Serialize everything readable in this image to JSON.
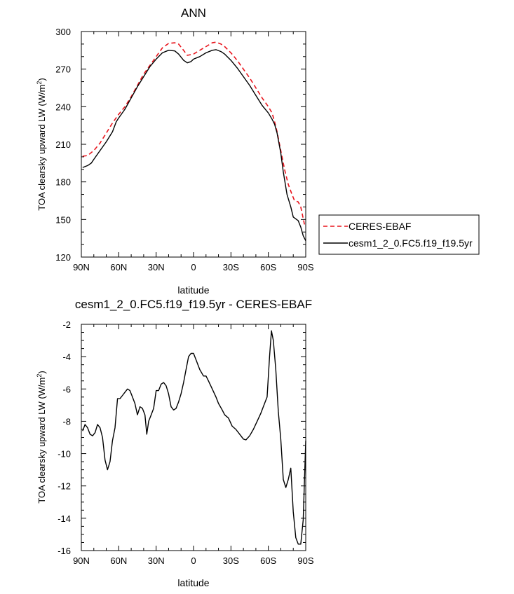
{
  "chart_data": [
    {
      "type": "line",
      "title": "ANN",
      "xlabel": "latitude",
      "ylabel": "TOA clearsky upward LW (W/m",
      "ylabel_sup": "2",
      "ylabel_close": ")",
      "xlim": [
        90,
        -90
      ],
      "ylim": [
        120,
        300
      ],
      "x_ticks": [
        90,
        60,
        30,
        0,
        -30,
        -60,
        -90
      ],
      "x_tick_labels": [
        "90N",
        "60N",
        "30N",
        "0",
        "30S",
        "60S",
        "90S"
      ],
      "y_ticks": [
        120,
        150,
        180,
        210,
        240,
        270,
        300
      ],
      "y_tick_labels": [
        "120",
        "150",
        "180",
        "210",
        "240",
        "270",
        "300"
      ],
      "legend_position": "right",
      "series": [
        {
          "name": "CERES-EBAF",
          "color": "#e8141c",
          "dash": "dashed",
          "points": [
            [
              89,
              200.5
            ],
            [
              85,
              201
            ],
            [
              80,
              205
            ],
            [
              75,
              211
            ],
            [
              70,
              219
            ],
            [
              65,
              227
            ],
            [
              60,
              234
            ],
            [
              55,
              240
            ],
            [
              50,
              248
            ],
            [
              45,
              257
            ],
            [
              40,
              266
            ],
            [
              35,
              273
            ],
            [
              30,
              280
            ],
            [
              25,
              287
            ],
            [
              20,
              290.5
            ],
            [
              15,
              291
            ],
            [
              12,
              290
            ],
            [
              8,
              285
            ],
            [
              5,
              281
            ],
            [
              0,
              282
            ],
            [
              -5,
              285
            ],
            [
              -10,
              288
            ],
            [
              -15,
              291
            ],
            [
              -18,
              291.5
            ],
            [
              -22,
              290
            ],
            [
              -25,
              288
            ],
            [
              -30,
              283
            ],
            [
              -35,
              277
            ],
            [
              -40,
              270
            ],
            [
              -45,
              263
            ],
            [
              -50,
              255
            ],
            [
              -55,
              247
            ],
            [
              -60,
              240
            ],
            [
              -63,
              235
            ],
            [
              -65,
              228
            ],
            [
              -67,
              220
            ],
            [
              -70,
              205
            ],
            [
              -73,
              190
            ],
            [
              -76,
              178
            ],
            [
              -79,
              170
            ],
            [
              -81,
              165
            ],
            [
              -84,
              164
            ],
            [
              -86,
              160
            ],
            [
              -89,
              146
            ]
          ]
        },
        {
          "name": "cesm1_2_0.FC5.f19_f19.5yr",
          "color": "#000000",
          "dash": "solid",
          "points": [
            [
              89,
              191.5
            ],
            [
              85,
              193
            ],
            [
              82,
              195
            ],
            [
              80,
              198
            ],
            [
              75,
              205
            ],
            [
              70,
              212
            ],
            [
              65,
              220
            ],
            [
              62,
              228
            ],
            [
              60,
              231
            ],
            [
              55,
              238
            ],
            [
              50,
              247
            ],
            [
              45,
              256
            ],
            [
              40,
              264
            ],
            [
              35,
              272
            ],
            [
              30,
              278
            ],
            [
              25,
              283
            ],
            [
              20,
              285
            ],
            [
              15,
              284.5
            ],
            [
              12,
              282
            ],
            [
              8,
              277
            ],
            [
              5,
              275
            ],
            [
              2,
              276
            ],
            [
              0,
              278
            ],
            [
              -5,
              280
            ],
            [
              -10,
              283
            ],
            [
              -15,
              285
            ],
            [
              -18,
              285.5
            ],
            [
              -22,
              284
            ],
            [
              -25,
              282
            ],
            [
              -30,
              277
            ],
            [
              -35,
              271
            ],
            [
              -40,
              264
            ],
            [
              -45,
              257
            ],
            [
              -50,
              249
            ],
            [
              -55,
              241
            ],
            [
              -60,
              235
            ],
            [
              -63,
              230
            ],
            [
              -65,
              226
            ],
            [
              -67,
              219
            ],
            [
              -70,
              203
            ],
            [
              -72,
              188
            ],
            [
              -75,
              170
            ],
            [
              -78,
              160
            ],
            [
              -80,
              152
            ],
            [
              -84,
              149
            ],
            [
              -86,
              144
            ],
            [
              -88,
              137
            ],
            [
              -90,
              133
            ]
          ]
        }
      ]
    },
    {
      "type": "line",
      "title": "cesm1_2_0.FC5.f19_f19.5yr - CERES-EBAF",
      "xlabel": "latitude",
      "ylabel": "TOA clearsky upward LW (W/m",
      "ylabel_sup": "2",
      "ylabel_close": ")",
      "xlim": [
        90,
        -90
      ],
      "ylim": [
        -16,
        -2
      ],
      "x_ticks": [
        90,
        60,
        30,
        0,
        -30,
        -60,
        -90
      ],
      "x_tick_labels": [
        "90N",
        "60N",
        "30N",
        "0",
        "30S",
        "60S",
        "90S"
      ],
      "y_ticks": [
        -16,
        -14,
        -12,
        -10,
        -8,
        -6,
        -4,
        -2
      ],
      "y_tick_labels": [
        "-16",
        "-14",
        "-12",
        "-10",
        "-8",
        "-6",
        "-4",
        "-2"
      ],
      "series": [
        {
          "name": "cesm1_2_0.FC5.f19_f19.5yr - CERES-EBAF",
          "color": "#000000",
          "dash": "solid",
          "points": [
            [
              89,
              -8.6
            ],
            [
              87,
              -8.2
            ],
            [
              85,
              -8.4
            ],
            [
              83,
              -8.8
            ],
            [
              81,
              -8.9
            ],
            [
              79,
              -8.7
            ],
            [
              77,
              -8.2
            ],
            [
              75,
              -8.4
            ],
            [
              73,
              -9.0
            ],
            [
              71,
              -10.4
            ],
            [
              69,
              -11.0
            ],
            [
              67,
              -10.5
            ],
            [
              65,
              -9.2
            ],
            [
              63,
              -8.4
            ],
            [
              61,
              -6.6
            ],
            [
              59,
              -6.6
            ],
            [
              57,
              -6.4
            ],
            [
              55,
              -6.2
            ],
            [
              53,
              -6.0
            ],
            [
              51,
              -6.1
            ],
            [
              49,
              -6.5
            ],
            [
              47,
              -6.9
            ],
            [
              45,
              -7.6
            ],
            [
              43,
              -7.1
            ],
            [
              41,
              -7.2
            ],
            [
              39,
              -7.6
            ],
            [
              37.5,
              -8.8
            ],
            [
              36,
              -8.0
            ],
            [
              34,
              -7.6
            ],
            [
              32,
              -7.2
            ],
            [
              30,
              -6.1
            ],
            [
              28,
              -6.1
            ],
            [
              26,
              -5.7
            ],
            [
              24,
              -5.6
            ],
            [
              22,
              -5.8
            ],
            [
              20,
              -6.3
            ],
            [
              18,
              -7.1
            ],
            [
              16,
              -7.3
            ],
            [
              14,
              -7.2
            ],
            [
              12,
              -6.8
            ],
            [
              10,
              -6.3
            ],
            [
              8,
              -5.6
            ],
            [
              6,
              -4.8
            ],
            [
              4,
              -4.0
            ],
            [
              2,
              -3.8
            ],
            [
              0,
              -3.8
            ],
            [
              -2,
              -4.2
            ],
            [
              -5,
              -4.8
            ],
            [
              -8,
              -5.2
            ],
            [
              -10,
              -5.2
            ],
            [
              -12,
              -5.5
            ],
            [
              -15,
              -6.0
            ],
            [
              -18,
              -6.5
            ],
            [
              -20,
              -6.9
            ],
            [
              -23,
              -7.3
            ],
            [
              -25,
              -7.6
            ],
            [
              -28,
              -7.8
            ],
            [
              -31,
              -8.3
            ],
            [
              -34,
              -8.5
            ],
            [
              -37,
              -8.8
            ],
            [
              -40,
              -9.1
            ],
            [
              -42,
              -9.15
            ],
            [
              -45,
              -8.9
            ],
            [
              -48,
              -8.5
            ],
            [
              -51,
              -8.0
            ],
            [
              -54,
              -7.5
            ],
            [
              -57,
              -6.9
            ],
            [
              -59,
              -6.5
            ],
            [
              -61,
              -4.0
            ],
            [
              -62.5,
              -2.4
            ],
            [
              -64,
              -3.0
            ],
            [
              -66,
              -4.8
            ],
            [
              -68,
              -7.4
            ],
            [
              -70,
              -9.1
            ],
            [
              -72,
              -11.6
            ],
            [
              -74,
              -12.1
            ],
            [
              -76,
              -11.6
            ],
            [
              -78,
              -10.9
            ],
            [
              -80,
              -13.6
            ],
            [
              -82,
              -15.2
            ],
            [
              -84,
              -15.6
            ],
            [
              -86,
              -15.6
            ],
            [
              -88,
              -14.1
            ],
            [
              -90,
              -9.2
            ]
          ]
        }
      ]
    }
  ]
}
